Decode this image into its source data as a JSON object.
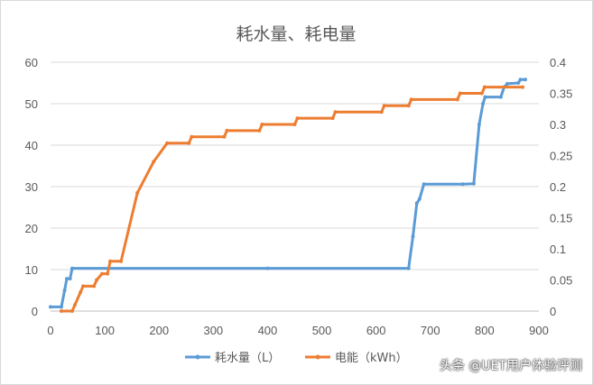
{
  "chart_data": {
    "type": "line",
    "title": "耗水量、耗电量",
    "xlabel": "",
    "ylabel": "",
    "xlim": [
      0,
      900
    ],
    "ylim_left": [
      0,
      60
    ],
    "ylim_right": [
      0,
      0.4
    ],
    "x_ticks": [
      "0",
      "100",
      "200",
      "300",
      "400",
      "500",
      "600",
      "700",
      "800",
      "900"
    ],
    "y_left_ticks": [
      "0",
      "10",
      "20",
      "30",
      "40",
      "50",
      "60"
    ],
    "y_right_ticks": [
      "0",
      "0.05",
      "0.1",
      "0.15",
      "0.2",
      "0.25",
      "0.3",
      "0.35",
      "0.4"
    ],
    "grid": true,
    "legend_position": "bottom",
    "series": [
      {
        "name": "耗水量（L）",
        "axis": "left",
        "color": "#5B9BD5",
        "points": [
          [
            0,
            1
          ],
          [
            20,
            1
          ],
          [
            26,
            5
          ],
          [
            30,
            7.8
          ],
          [
            36,
            7.8
          ],
          [
            40,
            10.3
          ],
          [
            400,
            10.3
          ],
          [
            660,
            10.3
          ],
          [
            668,
            18
          ],
          [
            675,
            26
          ],
          [
            680,
            27
          ],
          [
            688,
            30.6
          ],
          [
            760,
            30.6
          ],
          [
            780,
            30.7
          ],
          [
            790,
            45
          ],
          [
            797,
            50
          ],
          [
            801,
            51.6
          ],
          [
            830,
            51.6
          ],
          [
            836,
            54
          ],
          [
            842,
            54.8
          ],
          [
            862,
            55
          ],
          [
            866,
            55.8
          ],
          [
            875,
            55.8
          ]
        ]
      },
      {
        "name": "电能（kWh）",
        "axis": "right",
        "color": "#ED7D31",
        "points": [
          [
            20,
            0
          ],
          [
            40,
            0
          ],
          [
            45,
            0.01
          ],
          [
            55,
            0.03
          ],
          [
            60,
            0.04
          ],
          [
            80,
            0.04
          ],
          [
            85,
            0.05
          ],
          [
            95,
            0.06
          ],
          [
            105,
            0.06
          ],
          [
            110,
            0.08
          ],
          [
            130,
            0.08
          ],
          [
            160,
            0.19
          ],
          [
            190,
            0.24
          ],
          [
            215,
            0.27
          ],
          [
            255,
            0.27
          ],
          [
            260,
            0.28
          ],
          [
            320,
            0.28
          ],
          [
            325,
            0.29
          ],
          [
            385,
            0.29
          ],
          [
            390,
            0.3
          ],
          [
            450,
            0.3
          ],
          [
            455,
            0.31
          ],
          [
            520,
            0.31
          ],
          [
            525,
            0.32
          ],
          [
            610,
            0.32
          ],
          [
            615,
            0.33
          ],
          [
            660,
            0.33
          ],
          [
            665,
            0.34
          ],
          [
            750,
            0.34
          ],
          [
            755,
            0.35
          ],
          [
            795,
            0.35
          ],
          [
            800,
            0.36
          ],
          [
            870,
            0.36
          ]
        ]
      }
    ]
  },
  "watermark": {
    "text": "头条 @UET用户体验评测"
  }
}
